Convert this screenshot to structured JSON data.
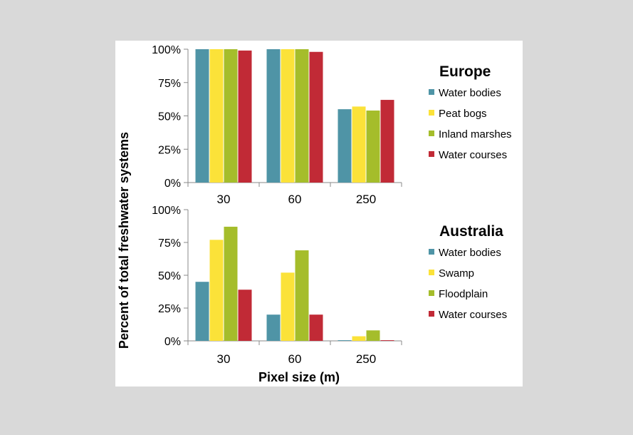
{
  "colors": {
    "water_bodies": "#4f94a6",
    "yellow": "#fbe239",
    "green": "#a5bd2b",
    "water_courses": "#c12a36"
  },
  "chart_data": {
    "type": "bar",
    "ylabel": "Percent of total freshwater systems",
    "xlabel": "Pixel size (m)",
    "ylim": [
      0,
      100
    ],
    "yticks": [
      "0%",
      "25%",
      "50%",
      "75%",
      "100%"
    ],
    "panels": [
      {
        "title": "Europe",
        "categories": [
          "30",
          "60",
          "250"
        ],
        "series": [
          {
            "name": "Water bodies",
            "color": "#4f94a6",
            "values": [
              100,
              100,
              55
            ]
          },
          {
            "name": "Peat bogs",
            "color": "#fbe239",
            "values": [
              100,
              100,
              57
            ]
          },
          {
            "name": "Inland marshes",
            "color": "#a5bd2b",
            "values": [
              100,
              100,
              54
            ]
          },
          {
            "name": "Water courses",
            "color": "#c12a36",
            "values": [
              99,
              98,
              62
            ]
          }
        ]
      },
      {
        "title": "Australia",
        "categories": [
          "30",
          "60",
          "250"
        ],
        "series": [
          {
            "name": "Water bodies",
            "color": "#4f94a6",
            "values": [
              45,
              20,
              0.5
            ]
          },
          {
            "name": "Swamp",
            "color": "#fbe239",
            "values": [
              77,
              52,
              3.5
            ]
          },
          {
            "name": "Floodplain",
            "color": "#a5bd2b",
            "values": [
              87,
              69,
              8
            ]
          },
          {
            "name": "Water courses",
            "color": "#c12a36",
            "values": [
              39,
              20,
              0.5
            ]
          }
        ]
      }
    ]
  }
}
